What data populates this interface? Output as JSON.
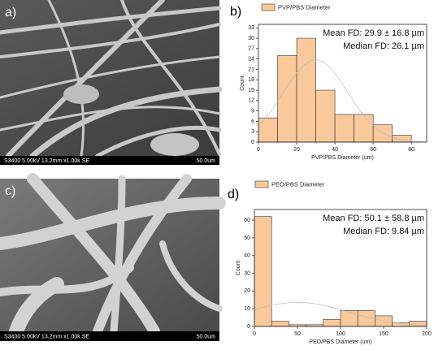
{
  "images": [
    {
      "label": "a)",
      "caption": "S3400 5.00kV 13.2mm x1.00k SE",
      "scale": "50.0um"
    },
    {
      "label": "c)",
      "caption": "S3400 5.00kV 13.2mm x1.00k SE",
      "scale": "50.0um"
    }
  ],
  "chart_data": [
    {
      "type": "histogram",
      "label": "b)",
      "xlabel": "PVP/PBS Diameter (um)",
      "ylabel": "Count",
      "bins": [
        0,
        10,
        20,
        30,
        40,
        50,
        60,
        70,
        80
      ],
      "series": [
        {
          "name": "PVP/PBS Diameter",
          "color": "#f9c89b",
          "values": [
            7,
            25,
            30,
            15,
            8,
            8,
            5,
            2
          ]
        }
      ],
      "annotations": [
        "Mean FD: 29.9 ± 16.8 µm",
        "Median FD: 26.1 µm"
      ],
      "normal_fit": {
        "mean": 29.9,
        "sd": 16.8
      },
      "xlim": [
        0,
        88
      ],
      "xticks": [
        0,
        20,
        40,
        60,
        80
      ],
      "ylim": [
        0,
        34
      ],
      "yticks": [
        0,
        3,
        6,
        9,
        12,
        15,
        18,
        21,
        24,
        27,
        30,
        33
      ]
    },
    {
      "type": "histogram",
      "label": "d)",
      "xlabel": "PEO/PBS Diameter (um)",
      "ylabel": "Count",
      "bins": [
        0,
        20,
        40,
        60,
        80,
        100,
        120,
        140,
        160,
        180,
        200
      ],
      "series": [
        {
          "name": "PEO/PBS Diameter",
          "color": "#f9c89b",
          "values": [
            62,
            3,
            1,
            1,
            4,
            9,
            9,
            6,
            2,
            3
          ]
        }
      ],
      "annotations": [
        "Mean FD: 50.1 ± 58.8 µm",
        "Median FD: 9.84 µm"
      ],
      "normal_fit": {
        "mean": 50.1,
        "sd": 58.8
      },
      "xlim": [
        0,
        200
      ],
      "xticks": [
        0,
        50,
        100,
        150,
        200
      ],
      "ylim": [
        0,
        66
      ],
      "yticks": [
        0,
        10,
        20,
        30,
        40,
        50,
        60
      ]
    }
  ]
}
